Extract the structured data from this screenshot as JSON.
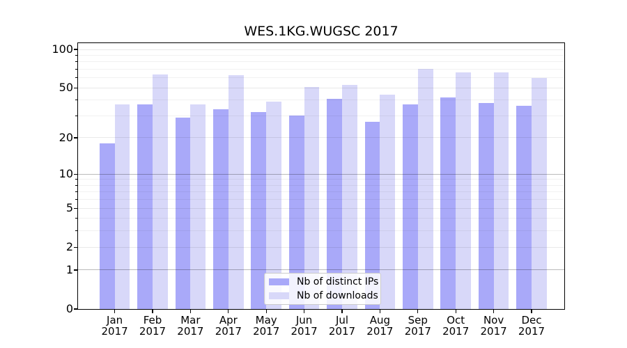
{
  "chart_data": {
    "type": "bar",
    "title": "WES.1KG.WUGSC 2017",
    "categories": [
      {
        "month": "Jan",
        "year": "2017"
      },
      {
        "month": "Feb",
        "year": "2017"
      },
      {
        "month": "Mar",
        "year": "2017"
      },
      {
        "month": "Apr",
        "year": "2017"
      },
      {
        "month": "May",
        "year": "2017"
      },
      {
        "month": "Jun",
        "year": "2017"
      },
      {
        "month": "Jul",
        "year": "2017"
      },
      {
        "month": "Aug",
        "year": "2017"
      },
      {
        "month": "Sep",
        "year": "2017"
      },
      {
        "month": "Oct",
        "year": "2017"
      },
      {
        "month": "Nov",
        "year": "2017"
      },
      {
        "month": "Dec",
        "year": "2017"
      }
    ],
    "series": [
      {
        "name": "Nb of distinct IPs",
        "color": "#a9a9f9",
        "values": [
          18,
          37,
          29,
          34,
          32,
          30,
          41,
          27,
          37,
          42,
          38,
          36
        ]
      },
      {
        "name": "Nb of downloads",
        "color": "#d8d8f9",
        "values": [
          37,
          64,
          37,
          63,
          39,
          51,
          53,
          44,
          70,
          66,
          66,
          60
        ]
      }
    ],
    "yscale": "log1p",
    "ylim": [
      0,
      112
    ],
    "ytick_values": [
      100,
      50,
      20,
      10,
      5,
      2,
      1,
      0
    ],
    "ytick_labels": [
      "100",
      "50",
      "20",
      "10",
      "5",
      "2",
      "1",
      "0"
    ],
    "grid": {
      "minor_values": [
        3,
        4,
        6,
        7,
        8,
        9,
        30,
        40,
        60,
        70,
        80,
        90
      ],
      "major_values": [
        2,
        5,
        20,
        50,
        100
      ],
      "strong_values": [
        1,
        10
      ],
      "grid_on": true,
      "grid_above_bars": true
    },
    "legend": {
      "position": "lower center",
      "frame": true
    }
  }
}
